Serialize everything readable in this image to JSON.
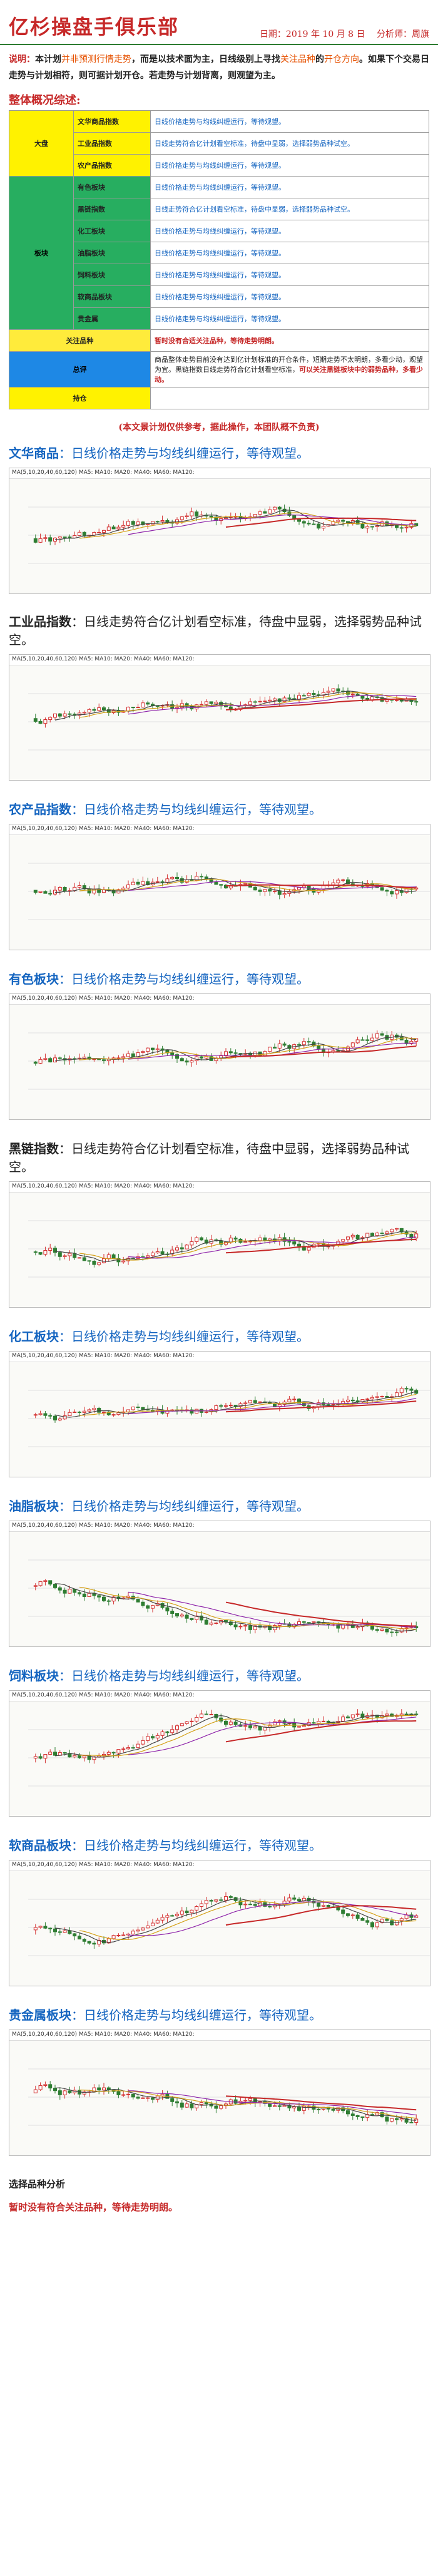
{
  "header": {
    "title": "亿杉操盘手俱乐部",
    "date": "日期：2019 年 10 月 8 日",
    "analyst": "分析师：周旗"
  },
  "description": {
    "label": "说明：",
    "p1": "本计划",
    "p2": "并非预测行情走势",
    "p3": "，而是以技术面为主，日线级别上寻找",
    "p4": "关注品种",
    "p5": "的",
    "p6": "开仓方向",
    "p7": "。如果下个交易日走势与计划相符，则可据计划开仓。若走势与计划背离，则观望为主。"
  },
  "summary": {
    "title": "整体概况综述:",
    "rows": [
      {
        "cat": "大盘",
        "sub": "文华商品指数",
        "text": "日线价格走势与均线纠缠运行，等待观望。"
      },
      {
        "cat": "",
        "sub": "工业品指数",
        "text": "日线走势符合亿计划看空标准，待盘中显弱，选择弱势品种试空。"
      },
      {
        "cat": "",
        "sub": "农产品指数",
        "text": "日线价格走势与均线纠缠运行，等待观望。"
      },
      {
        "cat": "板块",
        "sub": "有色板块",
        "text": "日线价格走势与均线纠缠运行，等待观望。"
      },
      {
        "cat": "",
        "sub": "黑链指数",
        "text": "日线走势符合亿计划看空标准，待盘中显弱，选择弱势品种试空。"
      },
      {
        "cat": "",
        "sub": "化工板块",
        "text": "日线价格走势与均线纠缠运行，等待观望。"
      },
      {
        "cat": "",
        "sub": "油脂板块",
        "text": "日线价格走势与均线纠缠运行，等待观望。"
      },
      {
        "cat": "",
        "sub": "饲料板块",
        "text": "日线价格走势与均线纠缠运行，等待观望。"
      },
      {
        "cat": "",
        "sub": "软商品板块",
        "text": "日线价格走势与均线纠缠运行，等待观望。"
      },
      {
        "cat": "",
        "sub": "贵金属",
        "text": "日线价格走势与均线纠缠运行，等待观望。"
      }
    ],
    "focus_label": "关注品种",
    "focus_text": "暂时没有合适关注品种，等待走势明朗。",
    "summary_label": "总评",
    "summary_text1": "商品整体走势目前没有达到亿计划标准的开仓条件，短期走势不太明朗，多看少动，观望为宜。黑链指数日线走势符合亿计划看空标准，",
    "summary_text2": "可以关注黑链板块中的弱势品种，多看少动。",
    "position_label": "持仓",
    "position_text": ""
  },
  "disclaimer": "(本文景计划仅供参考，据此操作，本团队概不负责)",
  "blocks": [
    {
      "name": "文华商品",
      "text": "日线价格走势与均线纠缠运行，等待观望。",
      "dark": false
    },
    {
      "name": "工业品指数",
      "text": "日线走势符合亿计划看空标准，待盘中显弱，选择弱势品种试空。",
      "dark": true
    },
    {
      "name": "农产品指数",
      "text": "日线价格走势与均线纠缠运行，等待观望。",
      "dark": false
    },
    {
      "name": "有色板块",
      "text": "日线价格走势与均线纠缠运行，等待观望。",
      "dark": false
    },
    {
      "name": "黑链指数",
      "text": "日线走势符合亿计划看空标准，待盘中显弱，选择弱势品种试空。",
      "dark": true
    },
    {
      "name": "化工板块",
      "text": "日线价格走势与均线纠缠运行，等待观望。",
      "dark": false
    },
    {
      "name": "油脂板块",
      "text": "日线价格走势与均线纠缠运行，等待观望。",
      "dark": false
    },
    {
      "name": "饲料板块",
      "text": "日线价格走势与均线纠缠运行，等待观望。",
      "dark": false
    },
    {
      "name": "软商品板块",
      "text": "日线价格走势与均线纠缠运行，等待观望。",
      "dark": false
    },
    {
      "name": "贵金属板块",
      "text": "日线价格走势与均线纠缠运行，等待观望。",
      "dark": false
    }
  ],
  "chart_bar_text": "MA(5,10,20,40,60,120) MA5: MA10: MA20: MA40: MA60: MA120:",
  "bottom": {
    "title": "选择品种分析",
    "text": "暂时没有符合关注品种，等待走势明朗。"
  },
  "colors": {
    "title_red": "#c62828",
    "label_blue": "#1565c0",
    "candle_up": "#d32f2f",
    "candle_down": "#2e7d32"
  }
}
